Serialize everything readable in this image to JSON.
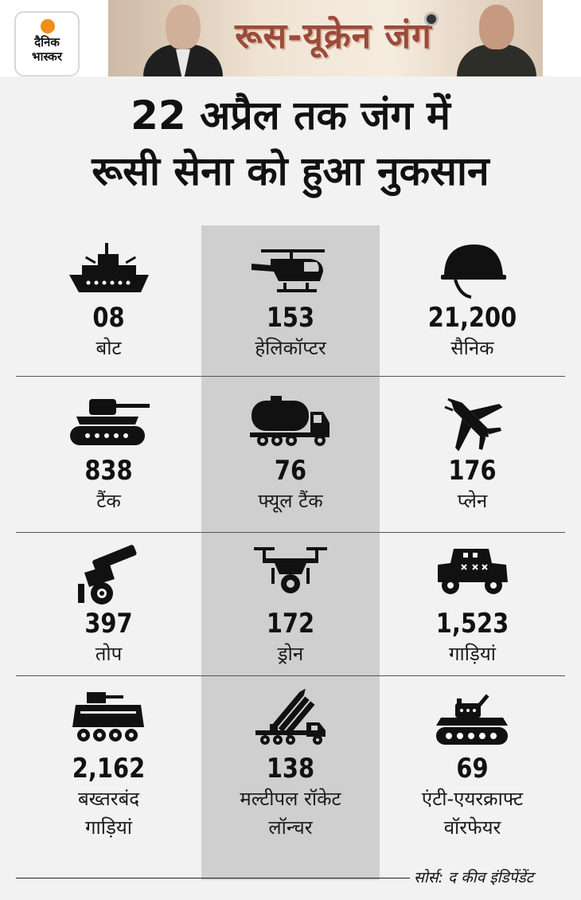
{
  "logo": {
    "line1": "दैनिक",
    "line2": "भास्कर"
  },
  "banner": {
    "title": "रूस-यूक्रेन जंग"
  },
  "title": {
    "line1": "22 अप्रैल तक जंग में",
    "line2": "रूसी सेना को हुआ नुकसान"
  },
  "items": [
    {
      "icon": "boat-icon",
      "value": "08",
      "label": "बोट"
    },
    {
      "icon": "helicopter-icon",
      "value": "153",
      "label": "हेलिकॉप्टर"
    },
    {
      "icon": "helmet-icon",
      "value": "21,200",
      "label": "सैनिक"
    },
    {
      "icon": "tank-icon",
      "value": "838",
      "label": "टैंक"
    },
    {
      "icon": "fuel-truck-icon",
      "value": "76",
      "label": "फ्यूल टैंक"
    },
    {
      "icon": "fighter-plane-icon",
      "value": "176",
      "label": "प्लेन"
    },
    {
      "icon": "artillery-icon",
      "value": "397",
      "label": "तोप"
    },
    {
      "icon": "drone-icon",
      "value": "172",
      "label": "ड्रोन"
    },
    {
      "icon": "military-vehicle-icon",
      "value": "1,523",
      "label": "गाड़ियां"
    },
    {
      "icon": "armored-vehicle-icon",
      "value": "2,162",
      "label": "बख्तरबंद",
      "label2": "गाड़ियां"
    },
    {
      "icon": "rocket-launcher-icon",
      "value": "138",
      "label": "मल्टीपल रॉकेट",
      "label2": "लॉन्चर"
    },
    {
      "icon": "anti-aircraft-icon",
      "value": "69",
      "label": "एंटी-एयरक्राफ्ट",
      "label2": "वॉरफेयर"
    }
  ],
  "source": "सोर्स: द कीव इंडिपेंडेंट",
  "colors": {
    "highlight_column": "#cfcfcf",
    "background": "#f2f2f2",
    "logo_sun": "#f28c1a",
    "banner_text": "#9c4a3a"
  }
}
